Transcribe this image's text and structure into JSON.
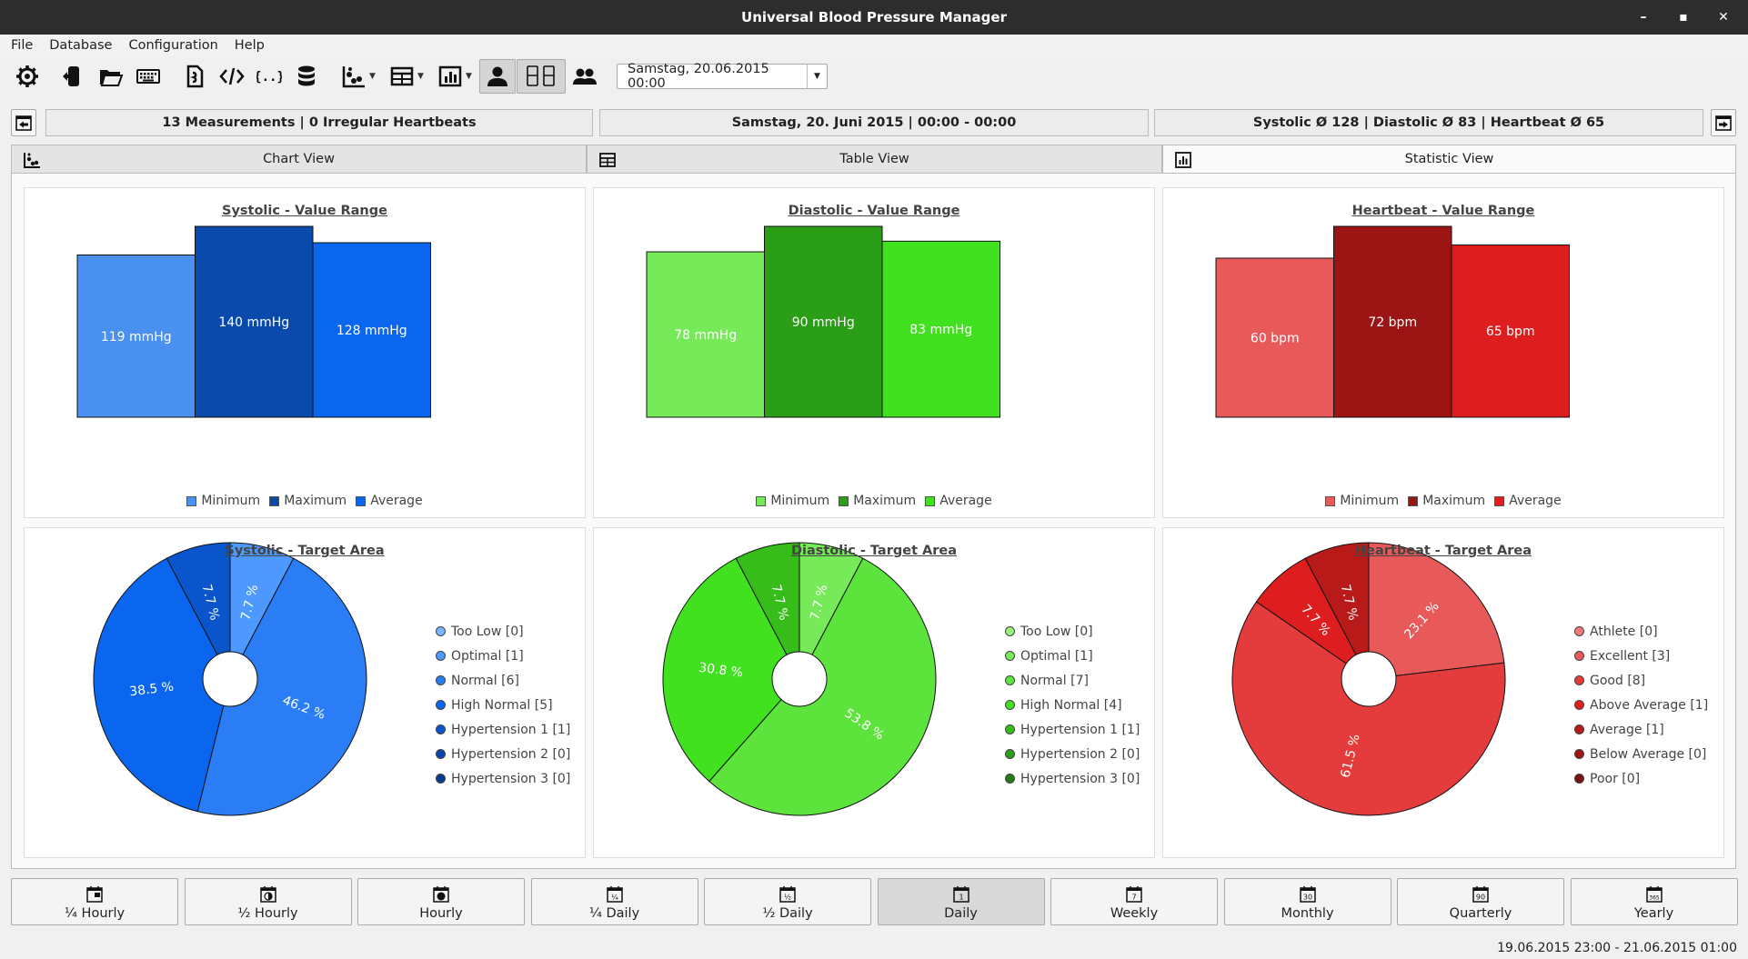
{
  "window": {
    "title": "Universal Blood Pressure Manager"
  },
  "menu": [
    "File",
    "Database",
    "Configuration",
    "Help"
  ],
  "toolbar": {
    "icons": [
      "gear-icon",
      "export-icon",
      "open-folder-icon",
      "keyboard-icon",
      "script-icon",
      "xml-icon",
      "json-icon",
      "database-icon",
      "chart-view-icon",
      "table-view-icon",
      "statistic-view-icon",
      "user-icon",
      "digital-display-icon",
      "users-icon"
    ],
    "date_value": "Samstag, 20.06.2015 00:00"
  },
  "info": {
    "left": "13 Measurements   |   0 Irregular Heartbeats",
    "center": "Samstag, 20. Juni 2015   |   00:00 - 00:00",
    "right": "Systolic Ø 128   |   Diastolic Ø 83   |   Heartbeat Ø 65"
  },
  "tabs": [
    {
      "label": "Chart View",
      "icon": "chart-view-icon"
    },
    {
      "label": "Table View",
      "icon": "table-view-icon"
    },
    {
      "label": "Statistic View",
      "icon": "statistic-view-icon"
    }
  ],
  "colors": {
    "sys": [
      "#4a90f0",
      "#0a4aad",
      "#0a66ee"
    ],
    "dia": [
      "#77ea5a",
      "#2a9e17",
      "#41e120"
    ],
    "hb": [
      "#e85a5a",
      "#9c1414",
      "#de1e1e"
    ]
  },
  "chart_data": [
    {
      "type": "bar",
      "title": "Systolic - Value Range",
      "categories": [
        "Minimum",
        "Maximum",
        "Average"
      ],
      "values": [
        119,
        140,
        128
      ],
      "labels": [
        "119 mmHg",
        "140 mmHg",
        "128 mmHg"
      ],
      "colors": [
        "#4a90f0",
        "#0a4aad",
        "#0a66ee"
      ],
      "legend_placement": "bottom"
    },
    {
      "type": "bar",
      "title": "Diastolic - Value Range",
      "categories": [
        "Minimum",
        "Maximum",
        "Average"
      ],
      "values": [
        78,
        90,
        83
      ],
      "labels": [
        "78 mmHg",
        "90 mmHg",
        "83 mmHg"
      ],
      "colors": [
        "#77ea5a",
        "#2a9e17",
        "#41e120"
      ],
      "legend_placement": "bottom"
    },
    {
      "type": "bar",
      "title": "Heartbeat - Value Range",
      "categories": [
        "Minimum",
        "Maximum",
        "Average"
      ],
      "values": [
        60,
        72,
        65
      ],
      "labels": [
        "60 bpm",
        "72 bpm",
        "65 bpm"
      ],
      "colors": [
        "#e85a5a",
        "#9c1414",
        "#de1e1e"
      ],
      "legend_placement": "bottom"
    },
    {
      "type": "pie",
      "title": "Systolic - Target Area",
      "categories": [
        "Too Low [0]",
        "Optimal [1]",
        "Normal [6]",
        "High Normal [5]",
        "Hypertension 1 [1]",
        "Hypertension 2 [0]",
        "Hypertension 3 [0]"
      ],
      "values": [
        0,
        7.7,
        46.2,
        38.5,
        7.7,
        0,
        0
      ],
      "labels": [
        "",
        "7.7 %",
        "46.2 %",
        "38.5 %",
        "7.7 %",
        "",
        ""
      ],
      "colors": [
        "#7ab6ff",
        "#4d99ff",
        "#2a7df5",
        "#0a66ee",
        "#0a55cc",
        "#0a46aa",
        "#083a8c"
      ],
      "legend_placement": "right"
    },
    {
      "type": "pie",
      "title": "Diastolic - Target Area",
      "categories": [
        "Too Low [0]",
        "Optimal [1]",
        "Normal [7]",
        "High Normal [4]",
        "Hypertension 1 [1]",
        "Hypertension 2 [0]",
        "Hypertension 3 [0]"
      ],
      "values": [
        0,
        7.7,
        53.8,
        30.8,
        7.7,
        0,
        0
      ],
      "labels": [
        "",
        "7.7 %",
        "53.8 %",
        "30.8 %",
        "7.7 %",
        "",
        ""
      ],
      "colors": [
        "#9af27e",
        "#77ea5a",
        "#5de43c",
        "#41e120",
        "#36bd1a",
        "#2a9e17",
        "#227d12"
      ],
      "legend_placement": "right"
    },
    {
      "type": "pie",
      "title": "Heartbeat - Target Area",
      "categories": [
        "Athlete [0]",
        "Excellent [3]",
        "Good [8]",
        "Above Average [1]",
        "Average [1]",
        "Below Average [0]",
        "Poor [0]"
      ],
      "values": [
        0,
        23.1,
        61.5,
        7.7,
        7.7,
        0,
        0
      ],
      "labels": [
        "",
        "23.1 %",
        "61.5 %",
        "7.7 %",
        "7.7 %",
        "",
        ""
      ],
      "colors": [
        "#f07a7a",
        "#e85a5a",
        "#e43c3c",
        "#de1e1e",
        "#b81a1a",
        "#9c1414",
        "#7a0f0f"
      ],
      "legend_placement": "right"
    }
  ],
  "periods": [
    {
      "label": "¼ Hourly",
      "icon": "quarter-hour-calendar-icon"
    },
    {
      "label": "½ Hourly",
      "icon": "half-hour-calendar-icon"
    },
    {
      "label": "Hourly",
      "icon": "hour-calendar-icon"
    },
    {
      "label": "¼ Daily",
      "icon": "quarter-day-calendar-icon",
      "glyph": "¼"
    },
    {
      "label": "½ Daily",
      "icon": "half-day-calendar-icon",
      "glyph": "½"
    },
    {
      "label": "Daily",
      "icon": "day-calendar-icon",
      "glyph": "1"
    },
    {
      "label": "Weekly",
      "icon": "week-calendar-icon",
      "glyph": "7"
    },
    {
      "label": "Monthly",
      "icon": "month-calendar-icon",
      "glyph": "30"
    },
    {
      "label": "Quarterly",
      "icon": "quarter-calendar-icon",
      "glyph": "90"
    },
    {
      "label": "Yearly",
      "icon": "year-calendar-icon",
      "glyph": "365"
    }
  ],
  "active_period": "Daily",
  "status": "19.06.2015 23:00 - 21.06.2015 01:00"
}
